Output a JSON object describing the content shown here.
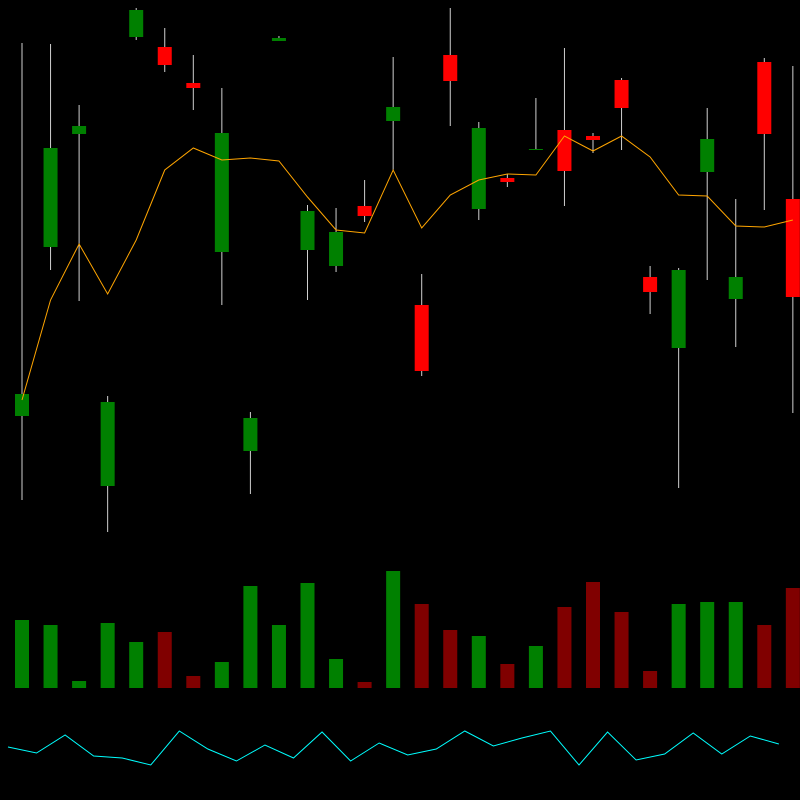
{
  "chart_data": [
    {
      "type": "candlestick",
      "open": [
        124,
        293,
        406,
        54,
        503,
        493,
        457,
        288,
        89,
        499,
        290,
        274,
        334,
        419,
        235,
        485,
        331,
        362,
        390,
        410,
        404,
        460,
        263,
        192,
        368,
        241,
        478,
        341
      ],
      "high": [
        497,
        496,
        435,
        144,
        532,
        512,
        485,
        452,
        128,
        504,
        335,
        332,
        360,
        483,
        266,
        532,
        418,
        366,
        442,
        492,
        407,
        462,
        274,
        272,
        432,
        341,
        482,
        474
      ],
      "low": [
        40,
        270,
        239,
        8,
        500,
        468,
        430,
        235,
        46,
        499,
        240,
        268,
        318,
        370,
        164,
        414,
        320,
        353,
        390,
        334,
        387,
        390,
        226,
        52,
        260,
        193,
        330,
        127
      ],
      "close": [
        146,
        392,
        414,
        138,
        530,
        475,
        452,
        407,
        122,
        502,
        329,
        308,
        324,
        433,
        169,
        459,
        412,
        358,
        391,
        369,
        400,
        432,
        248,
        270,
        401,
        263,
        406,
        243
      ],
      "up_color": "#008000",
      "down_color": "#ff0000",
      "wick_color": "#d0d0d0",
      "series": [
        {
          "color": "#ffa500",
          "values": [
            140,
            240,
            296,
            246,
            300,
            370,
            392,
            380,
            382,
            379,
            343,
            310,
            307,
            370,
            312,
            345,
            360,
            366,
            365,
            404,
            389,
            404,
            383,
            345,
            344,
            314,
            313,
            320
          ]
        }
      ],
      "ylim": [
        0,
        540
      ]
    },
    {
      "type": "bar",
      "values": [
        68,
        63,
        7,
        65,
        46,
        56,
        12,
        26,
        102,
        63,
        105,
        29,
        6,
        117,
        84,
        58,
        52,
        24,
        42,
        81,
        106,
        76,
        17,
        84,
        86,
        86,
        63,
        100
      ],
      "colors": [
        "#008000",
        "#008000",
        "#008000",
        "#008000",
        "#008000",
        "#800000",
        "#800000",
        "#008000",
        "#008000",
        "#008000",
        "#008000",
        "#008000",
        "#800000",
        "#008000",
        "#800000",
        "#800000",
        "#008000",
        "#800000",
        "#008000",
        "#800000",
        "#800000",
        "#800000",
        "#800000",
        "#008000",
        "#008000",
        "#008000",
        "#800000",
        "#800000"
      ],
      "ylim": [
        0,
        130
      ]
    },
    {
      "type": "line",
      "values": [
        53,
        47,
        65,
        44,
        42,
        35,
        69,
        51,
        39,
        55,
        42,
        68,
        39,
        57,
        45,
        51,
        69,
        54,
        62,
        69,
        35,
        68,
        40,
        46,
        67,
        46,
        64,
        56
      ],
      "color": "#00ffff",
      "ylim": [
        0,
        100
      ]
    }
  ]
}
